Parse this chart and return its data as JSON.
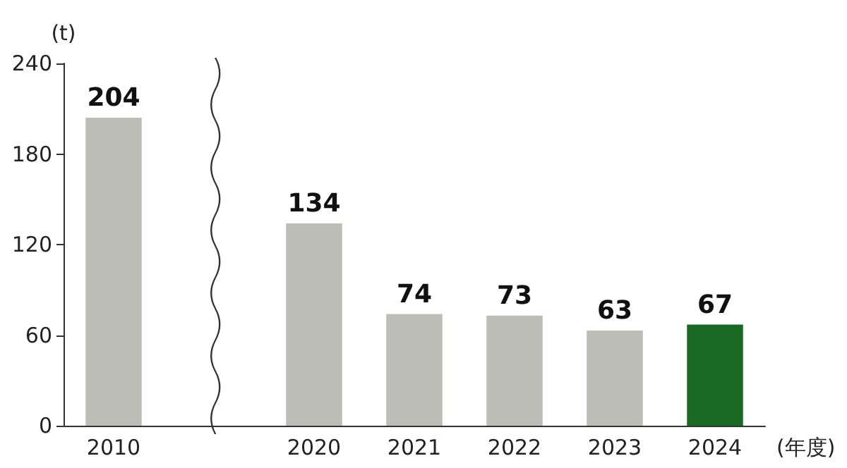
{
  "chart_data": {
    "type": "bar",
    "ylabel": "(t)",
    "xlabel": "(年度)",
    "categories": [
      "2010",
      null,
      "2020",
      "2021",
      "2022",
      "2023",
      "2024"
    ],
    "values": [
      204,
      null,
      134,
      74,
      73,
      63,
      67
    ],
    "colors": [
      "#bdbdb8",
      "#bdbdb8",
      "#bdbdb8",
      "#bdbdb8",
      "#bdbdb8",
      "#bdbdb8",
      "#1a6a26"
    ],
    "ylim": [
      0,
      240
    ],
    "yticks": [
      0,
      60,
      120,
      180,
      240
    ],
    "grid": false,
    "data_labels": true
  }
}
